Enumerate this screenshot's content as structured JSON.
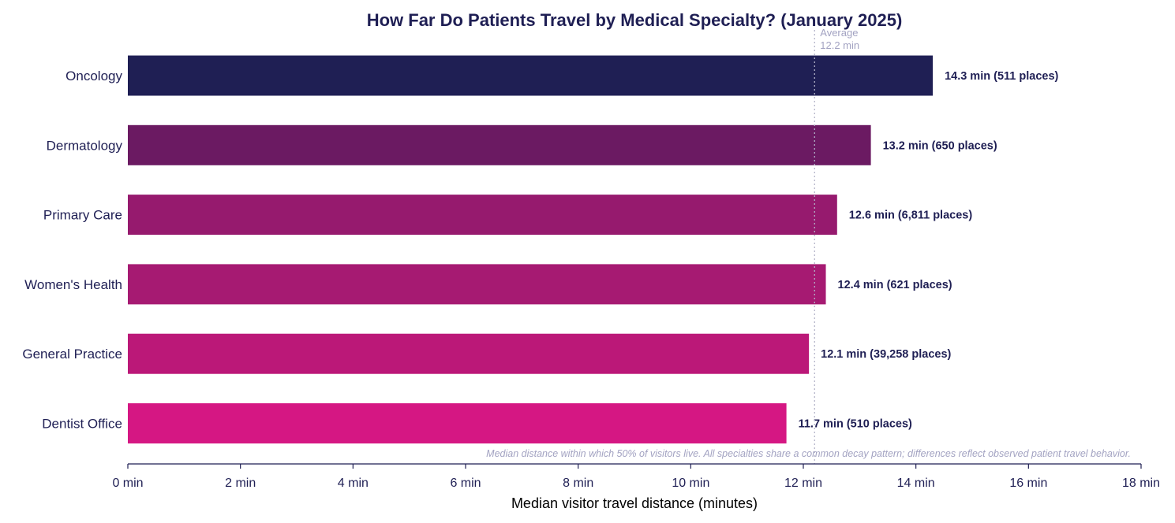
{
  "chart_data": {
    "type": "bar",
    "orientation": "horizontal",
    "title": "How Far Do Patients Travel by Medical Specialty? (January 2025)",
    "xlabel": "Median visitor travel distance (minutes)",
    "ylabel": "",
    "xlim": [
      0,
      18
    ],
    "xticks": [
      0,
      2,
      4,
      6,
      8,
      10,
      12,
      14,
      16,
      18
    ],
    "xtick_labels": [
      "0 min",
      "2 min",
      "4 min",
      "6 min",
      "8 min",
      "10 min",
      "12 min",
      "14 min",
      "16 min",
      "18 min"
    ],
    "categories": [
      "Oncology",
      "Dermatology",
      "Primary Care",
      "Women's Health",
      "General Practice",
      "Dentist Office"
    ],
    "values": [
      14.3,
      13.2,
      12.6,
      12.4,
      12.1,
      11.7
    ],
    "places": [
      511,
      650,
      6811,
      621,
      39258,
      510
    ],
    "data_labels": [
      "14.3 min (511 places)",
      "13.2 min (650 places)",
      "12.6 min (6,811 places)",
      "12.4 min (621 places)",
      "12.1 min (39,258 places)",
      "11.7 min (510 places)"
    ],
    "colors": [
      "#1f1f54",
      "#6b1a62",
      "#961a6e",
      "#a61a72",
      "#bb1878",
      "#d51783"
    ],
    "reference_line": {
      "value": 12.2,
      "label_line1": "Average",
      "label_line2": "12.2 min",
      "color": "#b3b3c8"
    },
    "footnote": "Median distance within which 50% of visitors live. All specialties share a common decay pattern; differences reflect observed patient travel behavior.",
    "grid": false,
    "legend": "none",
    "axis_color": "#1f1f54"
  }
}
